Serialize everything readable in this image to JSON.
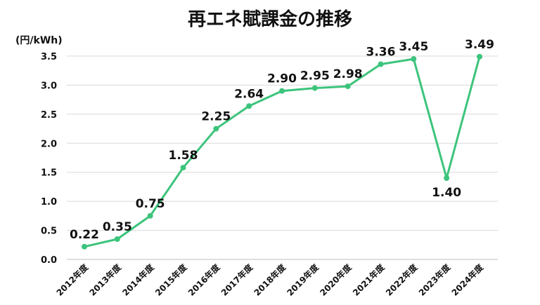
{
  "chart_data": {
    "type": "line",
    "title": "再エネ賦課金の推移",
    "ylabel": "(円/kWh)",
    "xlabel": "",
    "categories": [
      "2012年度",
      "2013年度",
      "2014年度",
      "2015年度",
      "2016年度",
      "2017年度",
      "2018年度",
      "2019年度",
      "2020年度",
      "2021年度",
      "2022年度",
      "2023年度",
      "2024年度"
    ],
    "series": [
      {
        "values": [
          0.22,
          0.35,
          0.75,
          1.58,
          2.25,
          2.64,
          2.9,
          2.95,
          2.98,
          3.36,
          3.45,
          1.4,
          3.49
        ]
      }
    ],
    "data_labels": [
      "0.22",
      "0.35",
      "0.75",
      "1.58",
      "2.25",
      "2.64",
      "2.90",
      "2.95",
      "2.98",
      "3.36",
      "3.45",
      "1.40",
      "3.49"
    ],
    "ylim": [
      0,
      3.5
    ],
    "yticks": [
      0.0,
      0.5,
      1.0,
      1.5,
      2.0,
      2.5,
      3.0,
      3.5
    ],
    "ytick_labels": [
      "0.0",
      "0.5",
      "1.0",
      "1.5",
      "2.0",
      "2.5",
      "3.0",
      "3.5"
    ],
    "grid": true,
    "legend": "none",
    "line_color": "#3cc47c"
  }
}
